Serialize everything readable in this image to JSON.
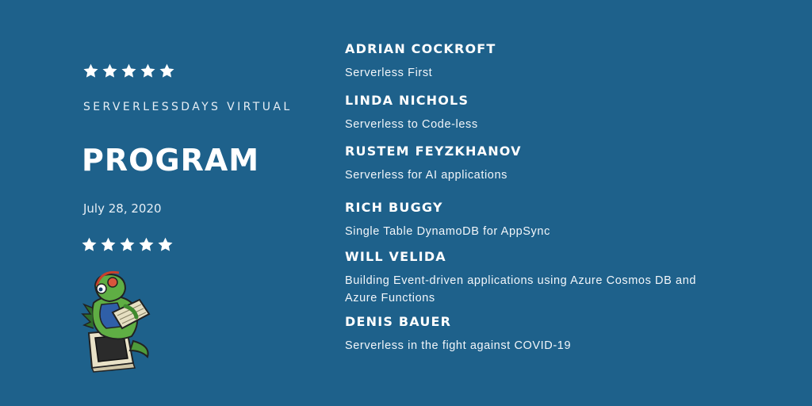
{
  "colors": {
    "background": "#1e618b",
    "text": "#ffffff"
  },
  "rating": {
    "top_stars": 5,
    "bottom_stars": 5
  },
  "event": {
    "name": "SERVERLESSDAYS VIRTUAL",
    "title": "PROGRAM",
    "date": "July 28, 2020"
  },
  "talks": [
    {
      "speaker": "ADRIAN COCKROFT",
      "topic": "Serverless First"
    },
    {
      "speaker": "LINDA NICHOLS",
      "topic": "Serverless to Code-less"
    },
    {
      "speaker": "RUSTEM FEYZKHANOV",
      "topic": "Serverless for AI applications"
    },
    {
      "speaker": "RICH BUGGY",
      "topic": "Single Table DynamoDB for AppSync"
    },
    {
      "speaker": "WILL VELIDA",
      "topic": "Building Event-driven applications using Azure Cosmos DB and Azure Functions"
    },
    {
      "speaker": "DENIS BAUER",
      "topic": "Serverless in the fight against COVID-19"
    }
  ],
  "icons": {
    "star": "star-icon",
    "mascot": "dinosaur-mascot-icon"
  }
}
